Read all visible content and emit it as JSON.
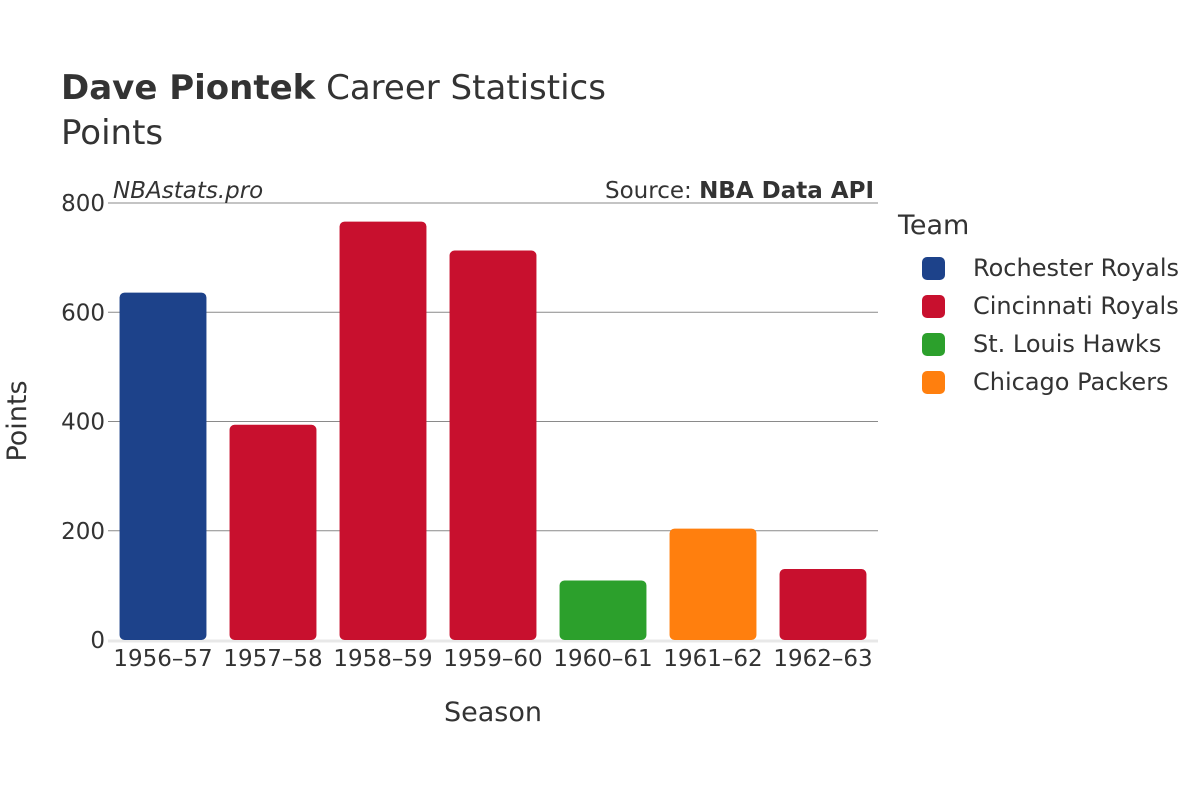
{
  "header": {
    "player": "Dave Piontek",
    "title_rest": " Career Statistics",
    "subtitle": "Points"
  },
  "watermark": "NBAstats.pro",
  "source": {
    "prefix": "Source: ",
    "name": "NBA Data API"
  },
  "legend": {
    "title": "Team",
    "items": [
      {
        "label": "Rochester Royals",
        "color": "#1d428a"
      },
      {
        "label": "Cincinnati Royals",
        "color": "#c8102e"
      },
      {
        "label": "St. Louis Hawks",
        "color": "#2ca02c"
      },
      {
        "label": "Chicago Packers",
        "color": "#ff7f0e"
      }
    ]
  },
  "chart_data": {
    "type": "bar",
    "title": "Dave Piontek Career Statistics",
    "subtitle": "Points",
    "xlabel": "Season",
    "ylabel": "Points",
    "ylim": [
      0,
      800
    ],
    "yticks": [
      0,
      200,
      400,
      600,
      800
    ],
    "categories": [
      "1956–57",
      "1957–58",
      "1958–59",
      "1959–60",
      "1960–61",
      "1961–62",
      "1962–63"
    ],
    "values": [
      636,
      394,
      766,
      713,
      109,
      204,
      130
    ],
    "teams": [
      "Rochester Royals",
      "Cincinnati Royals",
      "Cincinnati Royals",
      "Cincinnati Royals",
      "St. Louis Hawks",
      "Chicago Packers",
      "Cincinnati Royals"
    ],
    "grid": true,
    "legend_position": "right"
  }
}
